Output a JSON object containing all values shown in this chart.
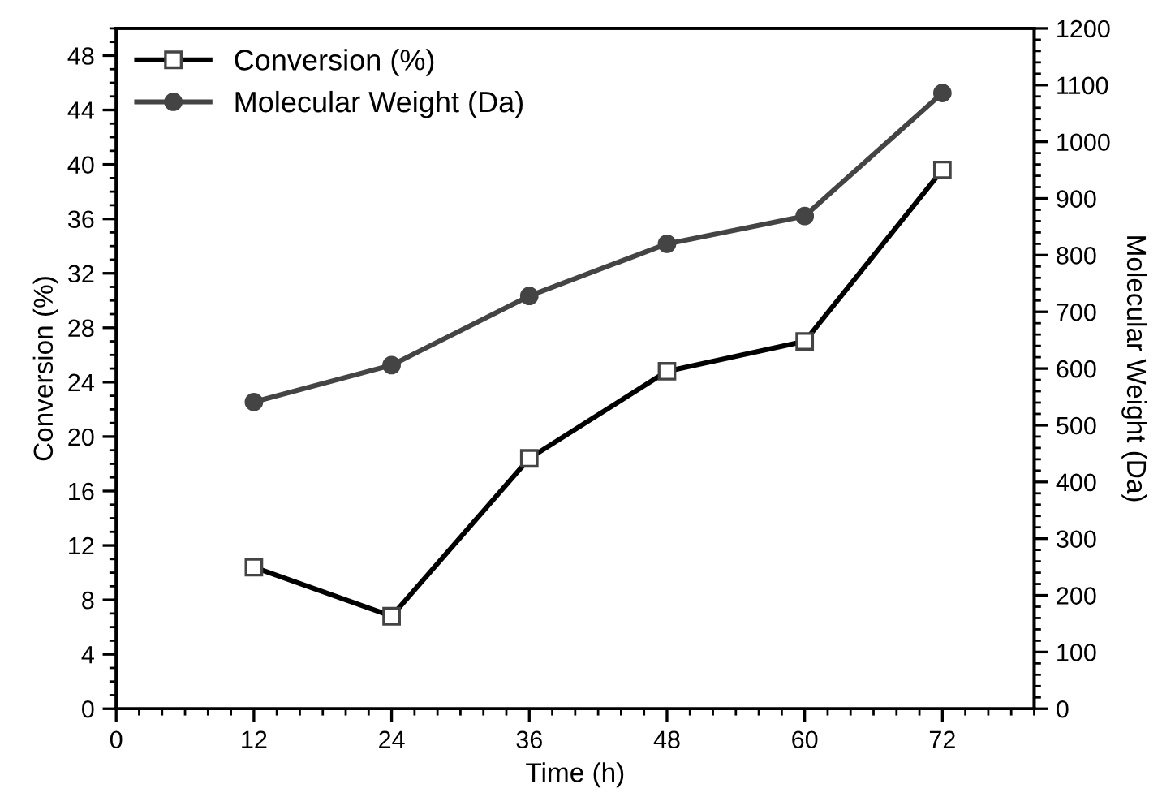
{
  "chart_data": {
    "type": "line",
    "xlabel": "Time (h)",
    "ylabel": "Conversion (%)",
    "y2label": "Molecular Weight (Da)",
    "x": [
      12,
      24,
      36,
      48,
      60,
      72
    ],
    "series": [
      {
        "name": "Conversion (%)",
        "color": "#000000",
        "marker": "square",
        "values": [
          10.4,
          6.8,
          18.4,
          24.8,
          27.0,
          39.6
        ]
      },
      {
        "name": "Molecular Weight (Da)",
        "color": "#444444",
        "marker": "circle",
        "axis": "y2",
        "values": [
          541,
          606,
          728,
          820,
          869,
          1086
        ]
      }
    ],
    "xlim": [
      0,
      80
    ],
    "xticks": [
      0,
      12,
      24,
      36,
      48,
      60,
      72
    ],
    "ylim": [
      0,
      50
    ],
    "yticks": [
      0,
      4,
      8,
      12,
      16,
      20,
      24,
      28,
      32,
      36,
      40,
      44,
      48
    ],
    "y2lim": [
      0,
      1200
    ],
    "y2ticks": [
      0,
      100,
      200,
      300,
      400,
      500,
      600,
      700,
      800,
      900,
      1000,
      1100,
      1200
    ],
    "legend": "top left",
    "grid": false,
    "line_style": "solid"
  }
}
